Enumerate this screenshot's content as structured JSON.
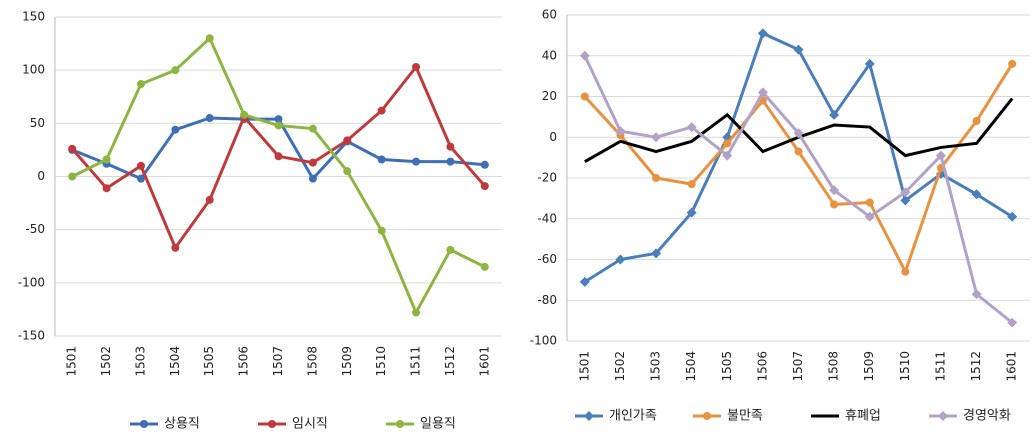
{
  "chart_data": [
    {
      "type": "line",
      "categories": [
        "1501",
        "1502",
        "1503",
        "1504",
        "1505",
        "1506",
        "1507",
        "1508",
        "1509",
        "1510",
        "1511",
        "1512",
        "1601"
      ],
      "ylim": [
        -150,
        150
      ],
      "yticks": [
        -150,
        -100,
        -50,
        0,
        50,
        100,
        150
      ],
      "grid": true,
      "legend": "bottom",
      "series": [
        {
          "name": "상용직",
          "color": "#3e6eb5",
          "marker": "circle",
          "values": [
            25,
            12,
            -2,
            44,
            55,
            54,
            54,
            -2,
            33,
            16,
            14,
            14,
            11
          ]
        },
        {
          "name": "임시직",
          "color": "#c0393b",
          "marker": "circle",
          "values": [
            26,
            -11,
            10,
            -67,
            -22,
            56,
            19,
            13,
            34,
            62,
            103,
            28,
            -9
          ]
        },
        {
          "name": "일용직",
          "color": "#8db542",
          "marker": "circle",
          "values": [
            0,
            16,
            87,
            100,
            130,
            58,
            48,
            45,
            5,
            -51,
            -128,
            -69,
            -85
          ]
        }
      ]
    },
    {
      "type": "line",
      "categories": [
        "1501",
        "1502",
        "1503",
        "1504",
        "1505",
        "1506",
        "1507",
        "1508",
        "1509",
        "1510",
        "1511",
        "1512",
        "1601"
      ],
      "ylim": [
        -100,
        60
      ],
      "yticks": [
        -100,
        -80,
        -60,
        -40,
        -20,
        0,
        20,
        40,
        60
      ],
      "grid": true,
      "legend": "bottom",
      "series": [
        {
          "name": "개인가족",
          "color": "#4a7ebb",
          "marker": "diamond",
          "values": [
            -71,
            -60,
            -57,
            -37,
            0,
            51,
            43,
            11,
            36,
            -31,
            -18,
            -28,
            -39
          ]
        },
        {
          "name": "불만족",
          "color": "#e8913f",
          "marker": "circle",
          "values": [
            20,
            1,
            -20,
            -23,
            -3,
            18,
            -7,
            -33,
            -32,
            -66,
            -15,
            8,
            36
          ]
        },
        {
          "name": "휴폐업",
          "color": "#000000",
          "marker": "none",
          "values": [
            -12,
            -2,
            -7,
            -2,
            11,
            -7,
            0,
            6,
            5,
            -9,
            -5,
            -3,
            19
          ]
        },
        {
          "name": "경영악화",
          "color": "#b3a2c7",
          "marker": "diamond",
          "values": [
            40,
            3,
            0,
            5,
            -9,
            22,
            2,
            -26,
            -39,
            -27,
            -9,
            -77,
            -91
          ]
        }
      ]
    }
  ]
}
